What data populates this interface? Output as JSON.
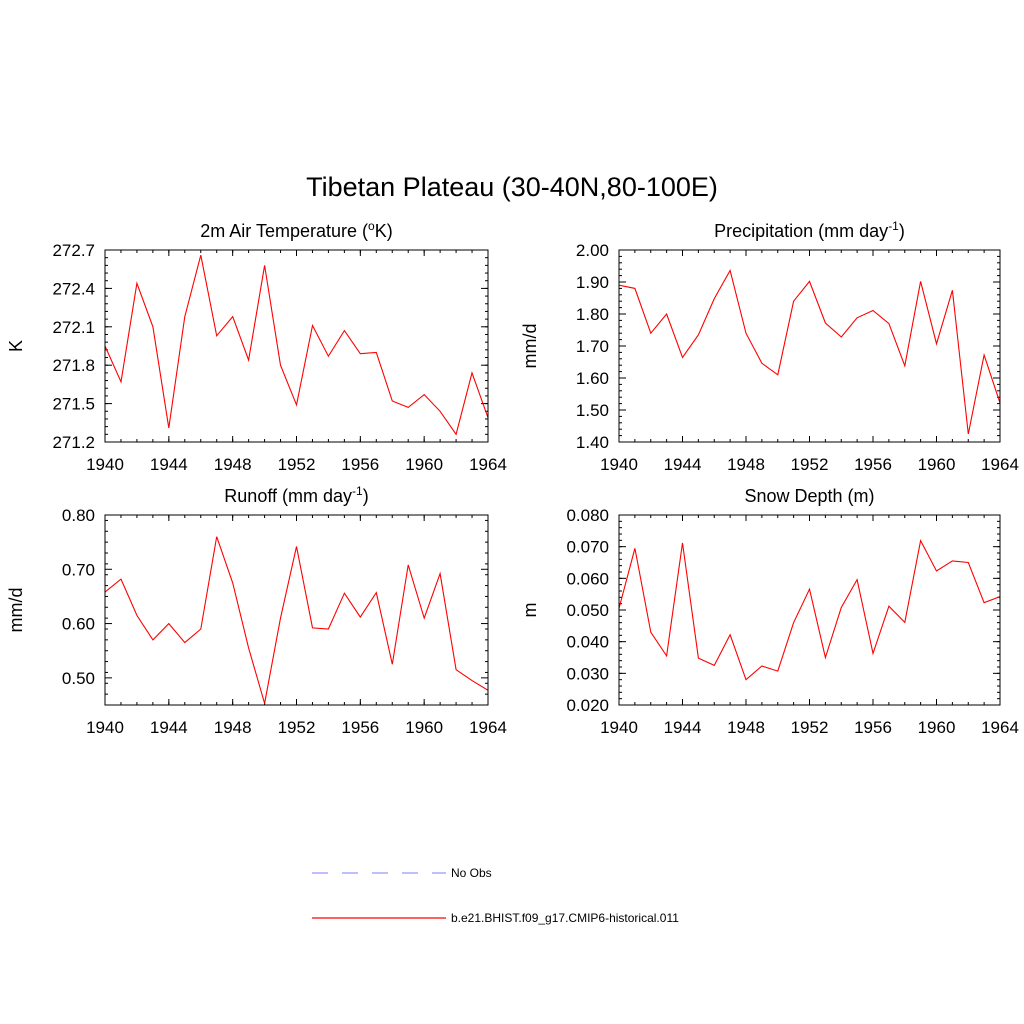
{
  "figure": {
    "title": "Tibetan Plateau (30-40N,80-100E)"
  },
  "legend": {
    "items": [
      {
        "label": "No Obs",
        "color": "#9999ff",
        "dash": true
      },
      {
        "label": "b.e21.BHIST.f09_g17.CMIP6-historical.011",
        "color": "#ff0000",
        "dash": false
      }
    ]
  },
  "chart_data": [
    {
      "type": "line",
      "title": "2m Air Temperature (",
      "title_sup": "o",
      "title_tail": "K)",
      "ylabel": "K",
      "xlim": [
        1940,
        1964
      ],
      "ylim": [
        271.2,
        272.7
      ],
      "xticks": [
        1940,
        1944,
        1948,
        1952,
        1956,
        1960,
        1964
      ],
      "yticks": [
        "271.2",
        "271.5",
        "271.8",
        "272.1",
        "272.4",
        "272.7"
      ],
      "x": [
        1940,
        1941,
        1942,
        1943,
        1944,
        1945,
        1946,
        1947,
        1948,
        1949,
        1950,
        1951,
        1952,
        1953,
        1954,
        1955,
        1956,
        1957,
        1958,
        1959,
        1960,
        1961,
        1962,
        1963,
        1964
      ],
      "series": [
        {
          "color": "#ff0000",
          "values": [
            271.95,
            271.67,
            272.44,
            272.1,
            271.31,
            272.18,
            272.66,
            272.03,
            272.18,
            271.84,
            272.58,
            271.8,
            271.49,
            272.11,
            271.87,
            272.07,
            271.89,
            271.9,
            271.52,
            271.47,
            271.57,
            271.44,
            271.26,
            271.74,
            271.39
          ]
        }
      ]
    },
    {
      "type": "line",
      "title": "Precipitation (mm day",
      "title_sup": "-1",
      "title_tail": ")",
      "ylabel": "mm/d",
      "xlim": [
        1940,
        1964
      ],
      "ylim": [
        1.4,
        2.0
      ],
      "xticks": [
        1940,
        1944,
        1948,
        1952,
        1956,
        1960,
        1964
      ],
      "yticks": [
        "1.40",
        "1.50",
        "1.60",
        "1.70",
        "1.80",
        "1.90",
        "2.00"
      ],
      "x": [
        1940,
        1941,
        1942,
        1943,
        1944,
        1945,
        1946,
        1947,
        1948,
        1949,
        1950,
        1951,
        1952,
        1953,
        1954,
        1955,
        1956,
        1957,
        1958,
        1959,
        1960,
        1961,
        1962,
        1963,
        1964
      ],
      "series": [
        {
          "color": "#ff0000",
          "values": [
            1.89,
            1.88,
            1.74,
            1.8,
            1.664,
            1.735,
            1.848,
            1.936,
            1.74,
            1.646,
            1.61,
            1.84,
            1.902,
            1.772,
            1.728,
            1.788,
            1.811,
            1.77,
            1.638,
            1.902,
            1.707,
            1.874,
            1.425,
            1.672,
            1.522
          ]
        }
      ]
    },
    {
      "type": "line",
      "title": "Runoff (mm day",
      "title_sup": "-1",
      "title_tail": ")",
      "ylabel": "mm/d",
      "xlim": [
        1940,
        1964
      ],
      "ylim": [
        0.45,
        0.8
      ],
      "xticks": [
        1940,
        1944,
        1948,
        1952,
        1956,
        1960,
        1964
      ],
      "yticks": [
        "0.50",
        "0.60",
        "0.70",
        "0.80"
      ],
      "ytick_values": [
        0.5,
        0.6,
        0.7,
        0.8
      ],
      "x": [
        1940,
        1941,
        1942,
        1943,
        1944,
        1945,
        1946,
        1947,
        1948,
        1949,
        1950,
        1951,
        1952,
        1953,
        1954,
        1955,
        1956,
        1957,
        1958,
        1959,
        1960,
        1961,
        1962,
        1963,
        1964
      ],
      "series": [
        {
          "color": "#ff0000",
          "values": [
            0.658,
            0.682,
            0.615,
            0.57,
            0.6,
            0.565,
            0.59,
            0.76,
            0.675,
            0.555,
            0.453,
            0.61,
            0.742,
            0.592,
            0.59,
            0.656,
            0.612,
            0.657,
            0.525,
            0.708,
            0.61,
            0.692,
            0.515,
            0.495,
            0.477
          ]
        }
      ]
    },
    {
      "type": "line",
      "title": "Snow Depth (m)",
      "title_sup": "",
      "title_tail": "",
      "ylabel": "m",
      "xlim": [
        1940,
        1964
      ],
      "ylim": [
        0.02,
        0.08
      ],
      "xticks": [
        1940,
        1944,
        1948,
        1952,
        1956,
        1960,
        1964
      ],
      "yticks": [
        "0.020",
        "0.030",
        "0.040",
        "0.050",
        "0.060",
        "0.070",
        "0.080"
      ],
      "x": [
        1940,
        1941,
        1942,
        1943,
        1944,
        1945,
        1946,
        1947,
        1948,
        1949,
        1950,
        1951,
        1952,
        1953,
        1954,
        1955,
        1956,
        1957,
        1958,
        1959,
        1960,
        1961,
        1962,
        1963,
        1964
      ],
      "series": [
        {
          "color": "#ff0000",
          "values": [
            0.0505,
            0.0695,
            0.043,
            0.0355,
            0.0712,
            0.0348,
            0.0325,
            0.0422,
            0.028,
            0.0323,
            0.0307,
            0.046,
            0.0566,
            0.035,
            0.0508,
            0.0596,
            0.0363,
            0.0512,
            0.0461,
            0.0719,
            0.0623,
            0.0655,
            0.065,
            0.0523,
            0.0542
          ]
        }
      ]
    }
  ]
}
